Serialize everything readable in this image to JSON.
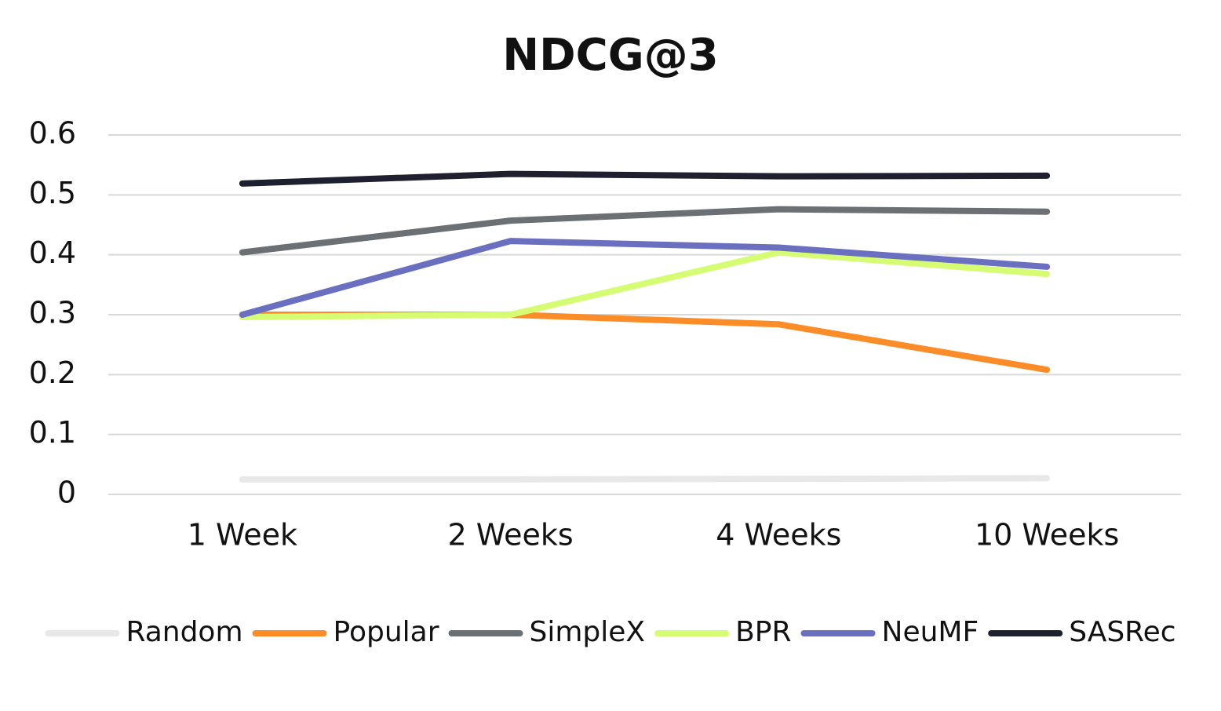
{
  "chart_data": {
    "type": "line",
    "title": "NDCG@3",
    "categories": [
      "1 Week",
      "2 Weeks",
      "4 Weeks",
      "10 Weeks"
    ],
    "series": [
      {
        "name": "Random",
        "color": "#e8e8e8",
        "values": [
          0.025,
          0.025,
          0.026,
          0.027
        ]
      },
      {
        "name": "Popular",
        "color": "#fb8c27",
        "values": [
          0.3,
          0.3,
          0.284,
          0.208
        ]
      },
      {
        "name": "SimpleX",
        "color": "#6b7075",
        "values": [
          0.404,
          0.457,
          0.476,
          0.472
        ]
      },
      {
        "name": "BPR",
        "color": "#d6fc74",
        "values": [
          0.296,
          0.3,
          0.404,
          0.368
        ]
      },
      {
        "name": "NeuMF",
        "color": "#6a6fc0",
        "values": [
          0.3,
          0.423,
          0.412,
          0.38
        ]
      },
      {
        "name": "SASRec",
        "color": "#1e2030",
        "values": [
          0.519,
          0.535,
          0.531,
          0.532
        ]
      }
    ],
    "ylim": [
      0,
      0.6
    ],
    "yticks": [
      0,
      0.1,
      0.2,
      0.3,
      0.4,
      0.5,
      0.6
    ],
    "grid": true,
    "legend": "bottom"
  }
}
